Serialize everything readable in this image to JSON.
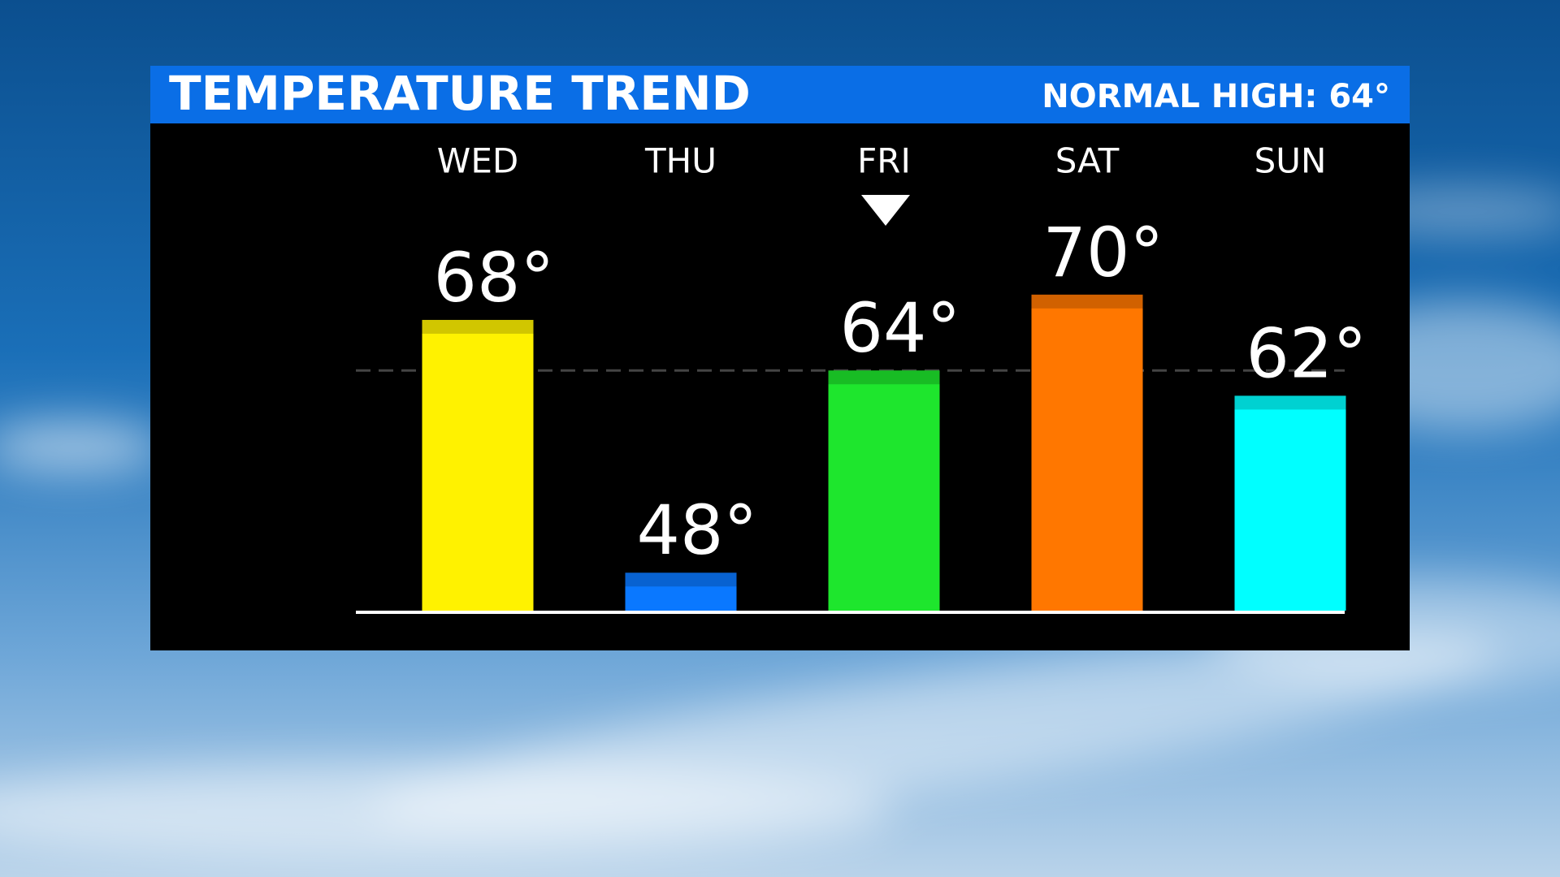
{
  "chart_data": {
    "type": "bar",
    "title": "TEMPERATURE TREND",
    "annotation": "NORMAL HIGH: 64°",
    "reference": 64,
    "categories": [
      "WED",
      "THU",
      "FRI",
      "SAT",
      "SUN"
    ],
    "values": [
      68,
      48,
      64,
      70,
      62
    ],
    "value_labels": [
      "68°",
      "48°",
      "64°",
      "70°",
      "62°"
    ],
    "colors": [
      "#fff200",
      "#0a78ff",
      "#1ee62d",
      "#ff7700",
      "#00ffff"
    ],
    "ylim": [
      45,
      75
    ]
  }
}
